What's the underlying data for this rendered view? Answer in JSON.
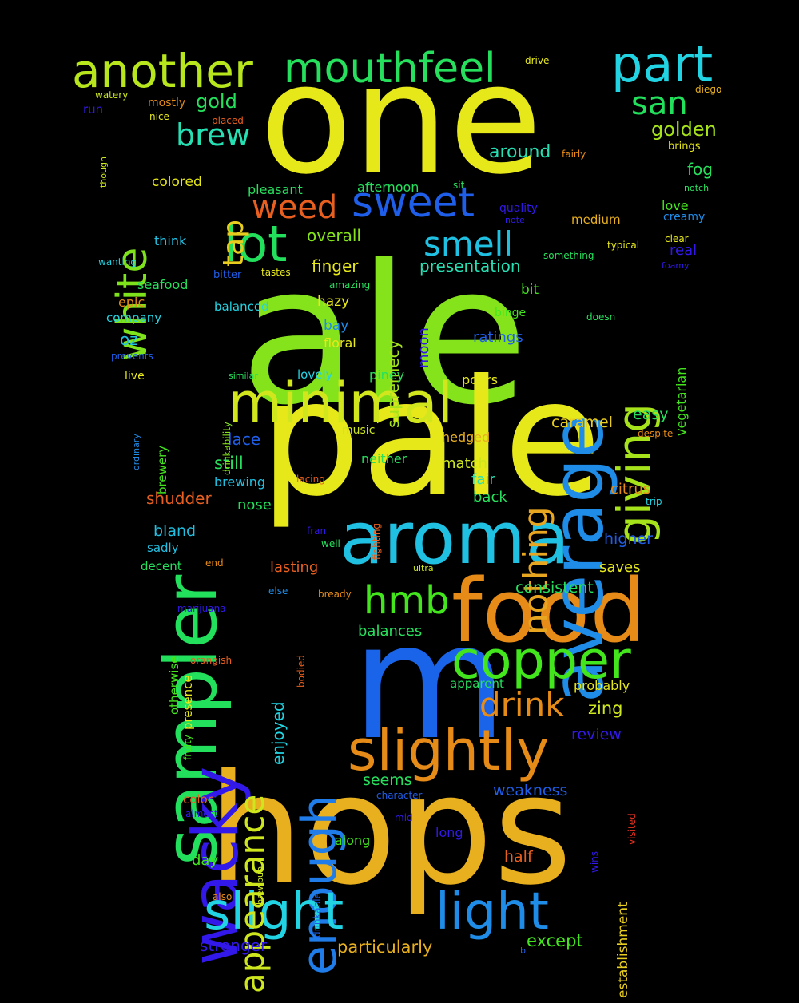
{
  "cloud": {
    "words": [
      {
        "text": "ale",
        "color": "#84e31b"
      },
      {
        "text": "one",
        "color": "#e6e81a"
      },
      {
        "text": "pale",
        "color": "#e6e81a"
      },
      {
        "text": "hops",
        "color": "#e8b01f"
      },
      {
        "text": "m",
        "color": "#1a64ea"
      },
      {
        "text": "food",
        "color": "#e68b17"
      },
      {
        "text": "aroma",
        "color": "#20c0e3"
      },
      {
        "text": "sampler",
        "color": "#22e05b"
      },
      {
        "text": "average",
        "color": "#1f8ce8"
      },
      {
        "text": "wacky",
        "color": "#3219ea"
      },
      {
        "text": "minimal",
        "color": "#d1e61d"
      },
      {
        "text": "slightly",
        "color": "#e68b17"
      },
      {
        "text": "copper",
        "color": "#43e61d"
      },
      {
        "text": "another",
        "color": "#b7e61d"
      },
      {
        "text": "mouthfeel",
        "color": "#26e05d"
      },
      {
        "text": "part",
        "color": "#22d4e3"
      },
      {
        "text": "giving",
        "color": "#a6e31b"
      },
      {
        "text": "enough",
        "color": "#1f7ce8"
      },
      {
        "text": "slight",
        "color": "#22d4e3"
      },
      {
        "text": "light",
        "color": "#1f8ce8"
      },
      {
        "text": "appearance",
        "color": "#cde61d"
      },
      {
        "text": "sweet",
        "color": "#1f5ee8"
      },
      {
        "text": "lot",
        "color": "#22e05b"
      },
      {
        "text": "hmb",
        "color": "#43e61d"
      },
      {
        "text": "white",
        "color": "#7ee31b"
      },
      {
        "text": "drink",
        "color": "#e68b17"
      },
      {
        "text": "nothing",
        "color": "#e8a51f"
      },
      {
        "text": "weed",
        "color": "#e85f1f"
      },
      {
        "text": "smell",
        "color": "#20c0e3"
      },
      {
        "text": "san",
        "color": "#22e05b"
      },
      {
        "text": "brew",
        "color": "#26e0b4"
      },
      {
        "text": "tap",
        "color": "#e8cd1f"
      },
      {
        "text": "gold",
        "color": "#26e05d"
      },
      {
        "text": "golden",
        "color": "#a6e31b"
      },
      {
        "text": "around",
        "color": "#26e0b4"
      },
      {
        "text": "fog",
        "color": "#26e05d"
      },
      {
        "text": "overall",
        "color": "#84e31b"
      },
      {
        "text": "presentation",
        "color": "#26e0b4"
      },
      {
        "text": "supremecy",
        "color": "#a6e31b"
      },
      {
        "text": "finger",
        "color": "#e6e81a"
      },
      {
        "text": "moon",
        "color": "#3219ea"
      },
      {
        "text": "vegetarian",
        "color": "#43e61d"
      },
      {
        "text": "colored",
        "color": "#e6e81a"
      },
      {
        "text": "pleasant",
        "color": "#26e05d"
      },
      {
        "text": "afternoon",
        "color": "#26e05d"
      },
      {
        "text": "love",
        "color": "#43e61d"
      },
      {
        "text": "creamy",
        "color": "#1f8ce8"
      },
      {
        "text": "real",
        "color": "#3219ea"
      },
      {
        "text": "medium",
        "color": "#e8b01f"
      },
      {
        "text": "quality",
        "color": "#3219ea"
      },
      {
        "text": "think",
        "color": "#20c0e3"
      },
      {
        "text": "bit",
        "color": "#43e61d"
      },
      {
        "text": "hazy",
        "color": "#e6e81a"
      },
      {
        "text": "bay",
        "color": "#1f8ce8"
      },
      {
        "text": "ratings",
        "color": "#1f5ee8"
      },
      {
        "text": "floral",
        "color": "#e6e81a"
      },
      {
        "text": "seafood",
        "color": "#26e05d"
      },
      {
        "text": "epic",
        "color": "#e68b17"
      },
      {
        "text": "company",
        "color": "#22d4e3"
      },
      {
        "text": "balanced",
        "color": "#22d4e3"
      },
      {
        "text": "oz",
        "color": "#20c0e3"
      },
      {
        "text": "piney",
        "color": "#26e05d"
      },
      {
        "text": "lovely",
        "color": "#22d4e3"
      },
      {
        "text": "pours",
        "color": "#e6e81a"
      },
      {
        "text": "easy",
        "color": "#26e05d"
      },
      {
        "text": "caramel",
        "color": "#e8cd1f"
      },
      {
        "text": "lace",
        "color": "#1f5ee8"
      },
      {
        "text": "still",
        "color": "#26e05d"
      },
      {
        "text": "brewing",
        "color": "#20c0e3"
      },
      {
        "text": "shudder",
        "color": "#e85f1f"
      },
      {
        "text": "nose",
        "color": "#22e05b"
      },
      {
        "text": "hedged",
        "color": "#e8b01f"
      },
      {
        "text": "match",
        "color": "#cde61d"
      },
      {
        "text": "fair",
        "color": "#26e0b4"
      },
      {
        "text": "back",
        "color": "#26e05d"
      },
      {
        "text": "citrus",
        "color": "#e68b17"
      },
      {
        "text": "neither",
        "color": "#26e05d"
      },
      {
        "text": "music",
        "color": "#cde61d"
      },
      {
        "text": "bland",
        "color": "#20c0e3"
      },
      {
        "text": "sadly",
        "color": "#20c0e3"
      },
      {
        "text": "decent",
        "color": "#26e05d"
      },
      {
        "text": "lasting",
        "color": "#e85f1f"
      },
      {
        "text": "consistent",
        "color": "#26e05d"
      },
      {
        "text": "saves",
        "color": "#e6e81a"
      },
      {
        "text": "higher",
        "color": "#1f5ee8"
      },
      {
        "text": "balances",
        "color": "#26e05d"
      },
      {
        "text": "enjoyed",
        "color": "#22d4e3"
      },
      {
        "text": "apparent",
        "color": "#26e05d"
      },
      {
        "text": "probably",
        "color": "#e6e81a"
      },
      {
        "text": "zing",
        "color": "#cde61d"
      },
      {
        "text": "review",
        "color": "#3219ea"
      },
      {
        "text": "seems",
        "color": "#26e05d"
      },
      {
        "text": "weakness",
        "color": "#1f5ee8"
      },
      {
        "text": "establishment",
        "color": "#e8cd1f"
      },
      {
        "text": "color",
        "color": "#e85f1f"
      },
      {
        "text": "day",
        "color": "#43e61d"
      },
      {
        "text": "along",
        "color": "#43e61d"
      },
      {
        "text": "long",
        "color": "#3219ea"
      },
      {
        "text": "half",
        "color": "#e85f1f"
      },
      {
        "text": "stronger",
        "color": "#3219ea"
      },
      {
        "text": "particularly",
        "color": "#e8b01f"
      },
      {
        "text": "except",
        "color": "#43e61d"
      },
      {
        "text": "presence",
        "color": "#e6e81a"
      },
      {
        "text": "otherwise",
        "color": "#43e61d"
      },
      {
        "text": "brewery",
        "color": "#43e61d"
      },
      {
        "text": "drinkability",
        "color": "#84e31b"
      },
      {
        "text": "binge",
        "color": "#43e61d"
      },
      {
        "text": "drive",
        "color": "#e6e81a"
      },
      {
        "text": "diego",
        "color": "#e8b01f"
      },
      {
        "text": "watery",
        "color": "#cde61d"
      },
      {
        "text": "mostly",
        "color": "#e68b17"
      },
      {
        "text": "run",
        "color": "#3219ea"
      },
      {
        "text": "nice",
        "color": "#e6e81a"
      },
      {
        "text": "though",
        "color": "#cde61d"
      },
      {
        "text": "placed",
        "color": "#e85f1f"
      },
      {
        "text": "brings",
        "color": "#e6e81a"
      },
      {
        "text": "fairly",
        "color": "#e68b17"
      },
      {
        "text": "sit",
        "color": "#26e05d"
      },
      {
        "text": "notch",
        "color": "#26e05d"
      },
      {
        "text": "note",
        "color": "#3219ea"
      },
      {
        "text": "clear",
        "color": "#e6e81a"
      },
      {
        "text": "typical",
        "color": "#e6e81a"
      },
      {
        "text": "something",
        "color": "#26e05d"
      },
      {
        "text": "foamy",
        "color": "#3219ea"
      },
      {
        "text": "wanting",
        "color": "#22d4e3"
      },
      {
        "text": "tastes",
        "color": "#e6e81a"
      },
      {
        "text": "bitter",
        "color": "#1f5ee8"
      },
      {
        "text": "amazing",
        "color": "#26e05d"
      },
      {
        "text": "doesn",
        "color": "#26e05d"
      },
      {
        "text": "prevents",
        "color": "#1f5ee8"
      },
      {
        "text": "similar",
        "color": "#26e05d"
      },
      {
        "text": "live",
        "color": "#e6e81a"
      },
      {
        "text": "ordinary",
        "color": "#1f8ce8"
      },
      {
        "text": "despite",
        "color": "#e68b17"
      },
      {
        "text": "lacing",
        "color": "#e85f1f"
      },
      {
        "text": "fighting",
        "color": "#e85f1f"
      },
      {
        "text": "trip",
        "color": "#22d4e3"
      },
      {
        "text": "fran",
        "color": "#3219ea"
      },
      {
        "text": "well",
        "color": "#26e05d"
      },
      {
        "text": "ultra",
        "color": "#cde61d"
      },
      {
        "text": "end",
        "color": "#e68b17"
      },
      {
        "text": "else",
        "color": "#1f8ce8"
      },
      {
        "text": "bready",
        "color": "#e68b17"
      },
      {
        "text": "marijuana",
        "color": "#3219ea"
      },
      {
        "text": "orangish",
        "color": "#e85f1f"
      },
      {
        "text": "bodied",
        "color": "#e85f1f"
      },
      {
        "text": "fruity",
        "color": "#43e61d"
      },
      {
        "text": "character",
        "color": "#1f5ee8"
      },
      {
        "text": "visited",
        "color": "#e8301f"
      },
      {
        "text": "almost",
        "color": "#3219ea"
      },
      {
        "text": "mid",
        "color": "#3219ea"
      },
      {
        "text": "wins",
        "color": "#3219ea"
      },
      {
        "text": "brewpub",
        "color": "#cde61d"
      },
      {
        "text": "drinkable",
        "color": "#1f5ee8"
      },
      {
        "text": "also",
        "color": "#e68b17"
      },
      {
        "text": "b",
        "color": "#1f5ee8"
      }
    ]
  }
}
